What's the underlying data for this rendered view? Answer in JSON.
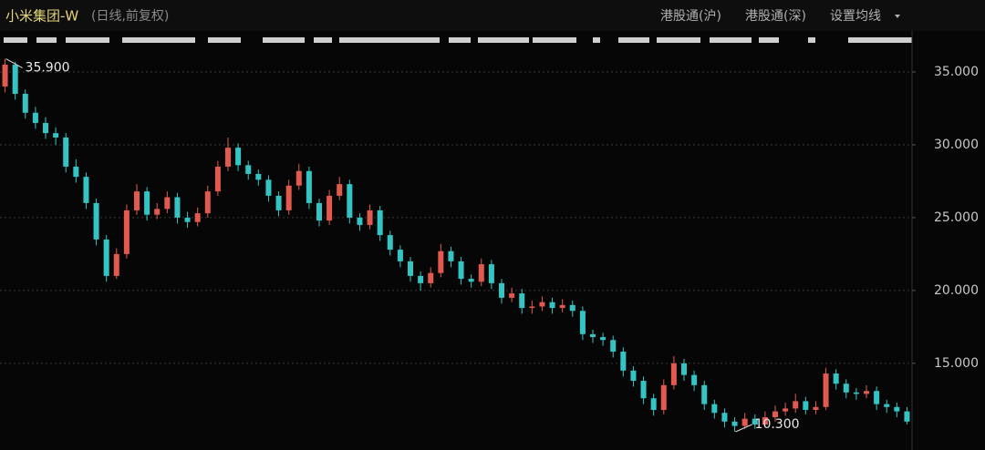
{
  "chart_data": {
    "type": "candlestick",
    "title": "小米集团-W",
    "subtitle": "(日线,前复权)",
    "up_color": "#e25a4e",
    "down_color": "#35c4c4",
    "ylim": [
      9.3,
      36.5
    ],
    "yticks": [
      {
        "value": 15,
        "label": "15.000"
      },
      {
        "value": 20,
        "label": "20.000"
      },
      {
        "value": 25,
        "label": "25.000"
      },
      {
        "value": 30,
        "label": "30.000"
      },
      {
        "value": 35,
        "label": "35.000"
      }
    ],
    "grid": true,
    "open": [
      34.0,
      35.5,
      33.5,
      32.2,
      31.5,
      30.8,
      30.5,
      28.5,
      27.8,
      26.0,
      23.5,
      21.0,
      22.5,
      25.5,
      26.8,
      25.2,
      25.6,
      26.4,
      25.0,
      24.7,
      25.3,
      26.8,
      28.5,
      29.8,
      28.6,
      28.0,
      27.6,
      26.5,
      25.5,
      27.2,
      28.2,
      26.0,
      24.8,
      26.5,
      27.3,
      25.0,
      24.5,
      25.5,
      23.8,
      22.8,
      22.0,
      21.0,
      20.5,
      21.2,
      22.7,
      22.0,
      20.8,
      20.6,
      21.8,
      20.5,
      19.5,
      19.8,
      18.8,
      18.9,
      19.2,
      18.8,
      19.0,
      18.6,
      17.0,
      16.8,
      16.6,
      15.8,
      14.5,
      13.8,
      12.6,
      11.8,
      13.5,
      15.0,
      14.2,
      13.5,
      12.2,
      11.6,
      11.0,
      10.7,
      11.2,
      10.8,
      11.3,
      11.7,
      11.9,
      12.4,
      11.8,
      12.0,
      14.3,
      13.6,
      13.0,
      12.9,
      13.1,
      12.2,
      12.0,
      11.7
    ],
    "high": [
      35.9,
      35.7,
      33.8,
      32.6,
      31.9,
      31.2,
      30.8,
      29.0,
      28.1,
      26.3,
      23.8,
      22.9,
      25.9,
      27.3,
      27.1,
      26.0,
      26.8,
      26.7,
      25.4,
      25.7,
      27.2,
      28.9,
      30.5,
      30.1,
      28.9,
      28.3,
      27.9,
      26.8,
      27.6,
      28.7,
      28.5,
      26.3,
      26.9,
      27.8,
      27.6,
      25.3,
      25.9,
      25.8,
      24.1,
      23.1,
      22.3,
      21.3,
      21.6,
      23.2,
      23.0,
      22.3,
      21.1,
      22.2,
      22.1,
      20.8,
      20.2,
      20.1,
      19.3,
      19.6,
      19.5,
      19.4,
      19.3,
      18.9,
      17.3,
      17.1,
      16.9,
      16.1,
      14.8,
      14.1,
      12.9,
      13.9,
      15.5,
      15.3,
      14.5,
      13.8,
      12.5,
      11.9,
      11.3,
      11.6,
      11.5,
      11.7,
      12.1,
      12.3,
      12.9,
      12.7,
      12.4,
      14.7,
      14.6,
      13.9,
      13.3,
      13.5,
      13.4,
      12.5,
      12.3,
      12.0
    ],
    "low": [
      33.6,
      33.1,
      31.8,
      31.1,
      30.4,
      30.0,
      28.1,
      27.4,
      25.6,
      23.1,
      20.6,
      20.8,
      22.2,
      25.2,
      24.8,
      24.9,
      25.3,
      24.6,
      24.3,
      24.4,
      25.0,
      26.5,
      28.2,
      28.2,
      27.6,
      27.2,
      26.1,
      25.1,
      25.2,
      26.9,
      25.6,
      24.4,
      24.5,
      26.2,
      24.6,
      24.1,
      24.2,
      23.4,
      22.4,
      21.6,
      20.6,
      20.0,
      20.2,
      20.9,
      21.6,
      20.4,
      20.2,
      20.3,
      20.1,
      19.1,
      19.2,
      18.4,
      18.4,
      18.6,
      18.4,
      18.5,
      18.2,
      16.6,
      16.4,
      16.2,
      15.4,
      14.1,
      13.4,
      12.2,
      11.4,
      11.5,
      13.2,
      13.8,
      13.1,
      11.8,
      11.2,
      10.6,
      10.3,
      10.5,
      10.5,
      10.6,
      11.0,
      11.4,
      11.6,
      11.5,
      11.5,
      11.8,
      13.2,
      12.6,
      12.5,
      12.6,
      11.8,
      11.6,
      11.3,
      10.8
    ],
    "close": [
      35.5,
      33.5,
      32.2,
      31.5,
      30.8,
      30.5,
      28.5,
      27.8,
      26.0,
      23.5,
      21.0,
      22.5,
      25.5,
      26.8,
      25.2,
      25.6,
      26.4,
      25.0,
      24.7,
      25.3,
      26.8,
      28.5,
      29.8,
      28.6,
      28.0,
      27.6,
      26.5,
      25.5,
      27.2,
      28.2,
      26.0,
      24.8,
      26.5,
      27.3,
      25.0,
      24.5,
      25.5,
      23.8,
      22.8,
      22.0,
      21.0,
      20.5,
      21.2,
      22.7,
      22.0,
      20.8,
      20.6,
      21.8,
      20.5,
      19.5,
      19.8,
      18.8,
      18.9,
      19.2,
      18.8,
      19.0,
      18.6,
      17.0,
      16.8,
      16.6,
      15.8,
      14.5,
      13.8,
      12.6,
      11.8,
      13.5,
      15.0,
      14.2,
      13.5,
      12.2,
      11.6,
      11.0,
      10.7,
      11.2,
      10.8,
      11.3,
      11.7,
      11.9,
      12.4,
      11.8,
      12.0,
      14.3,
      13.6,
      13.0,
      12.9,
      13.1,
      12.2,
      12.0,
      11.7,
      11.0
    ],
    "annotations": [
      {
        "value": 35.9,
        "label": "35.900"
      },
      {
        "value": 10.3,
        "label": "10.300"
      }
    ]
  },
  "toolbar": [
    "港股通(沪)",
    "港股通(深)",
    "设置均线"
  ]
}
